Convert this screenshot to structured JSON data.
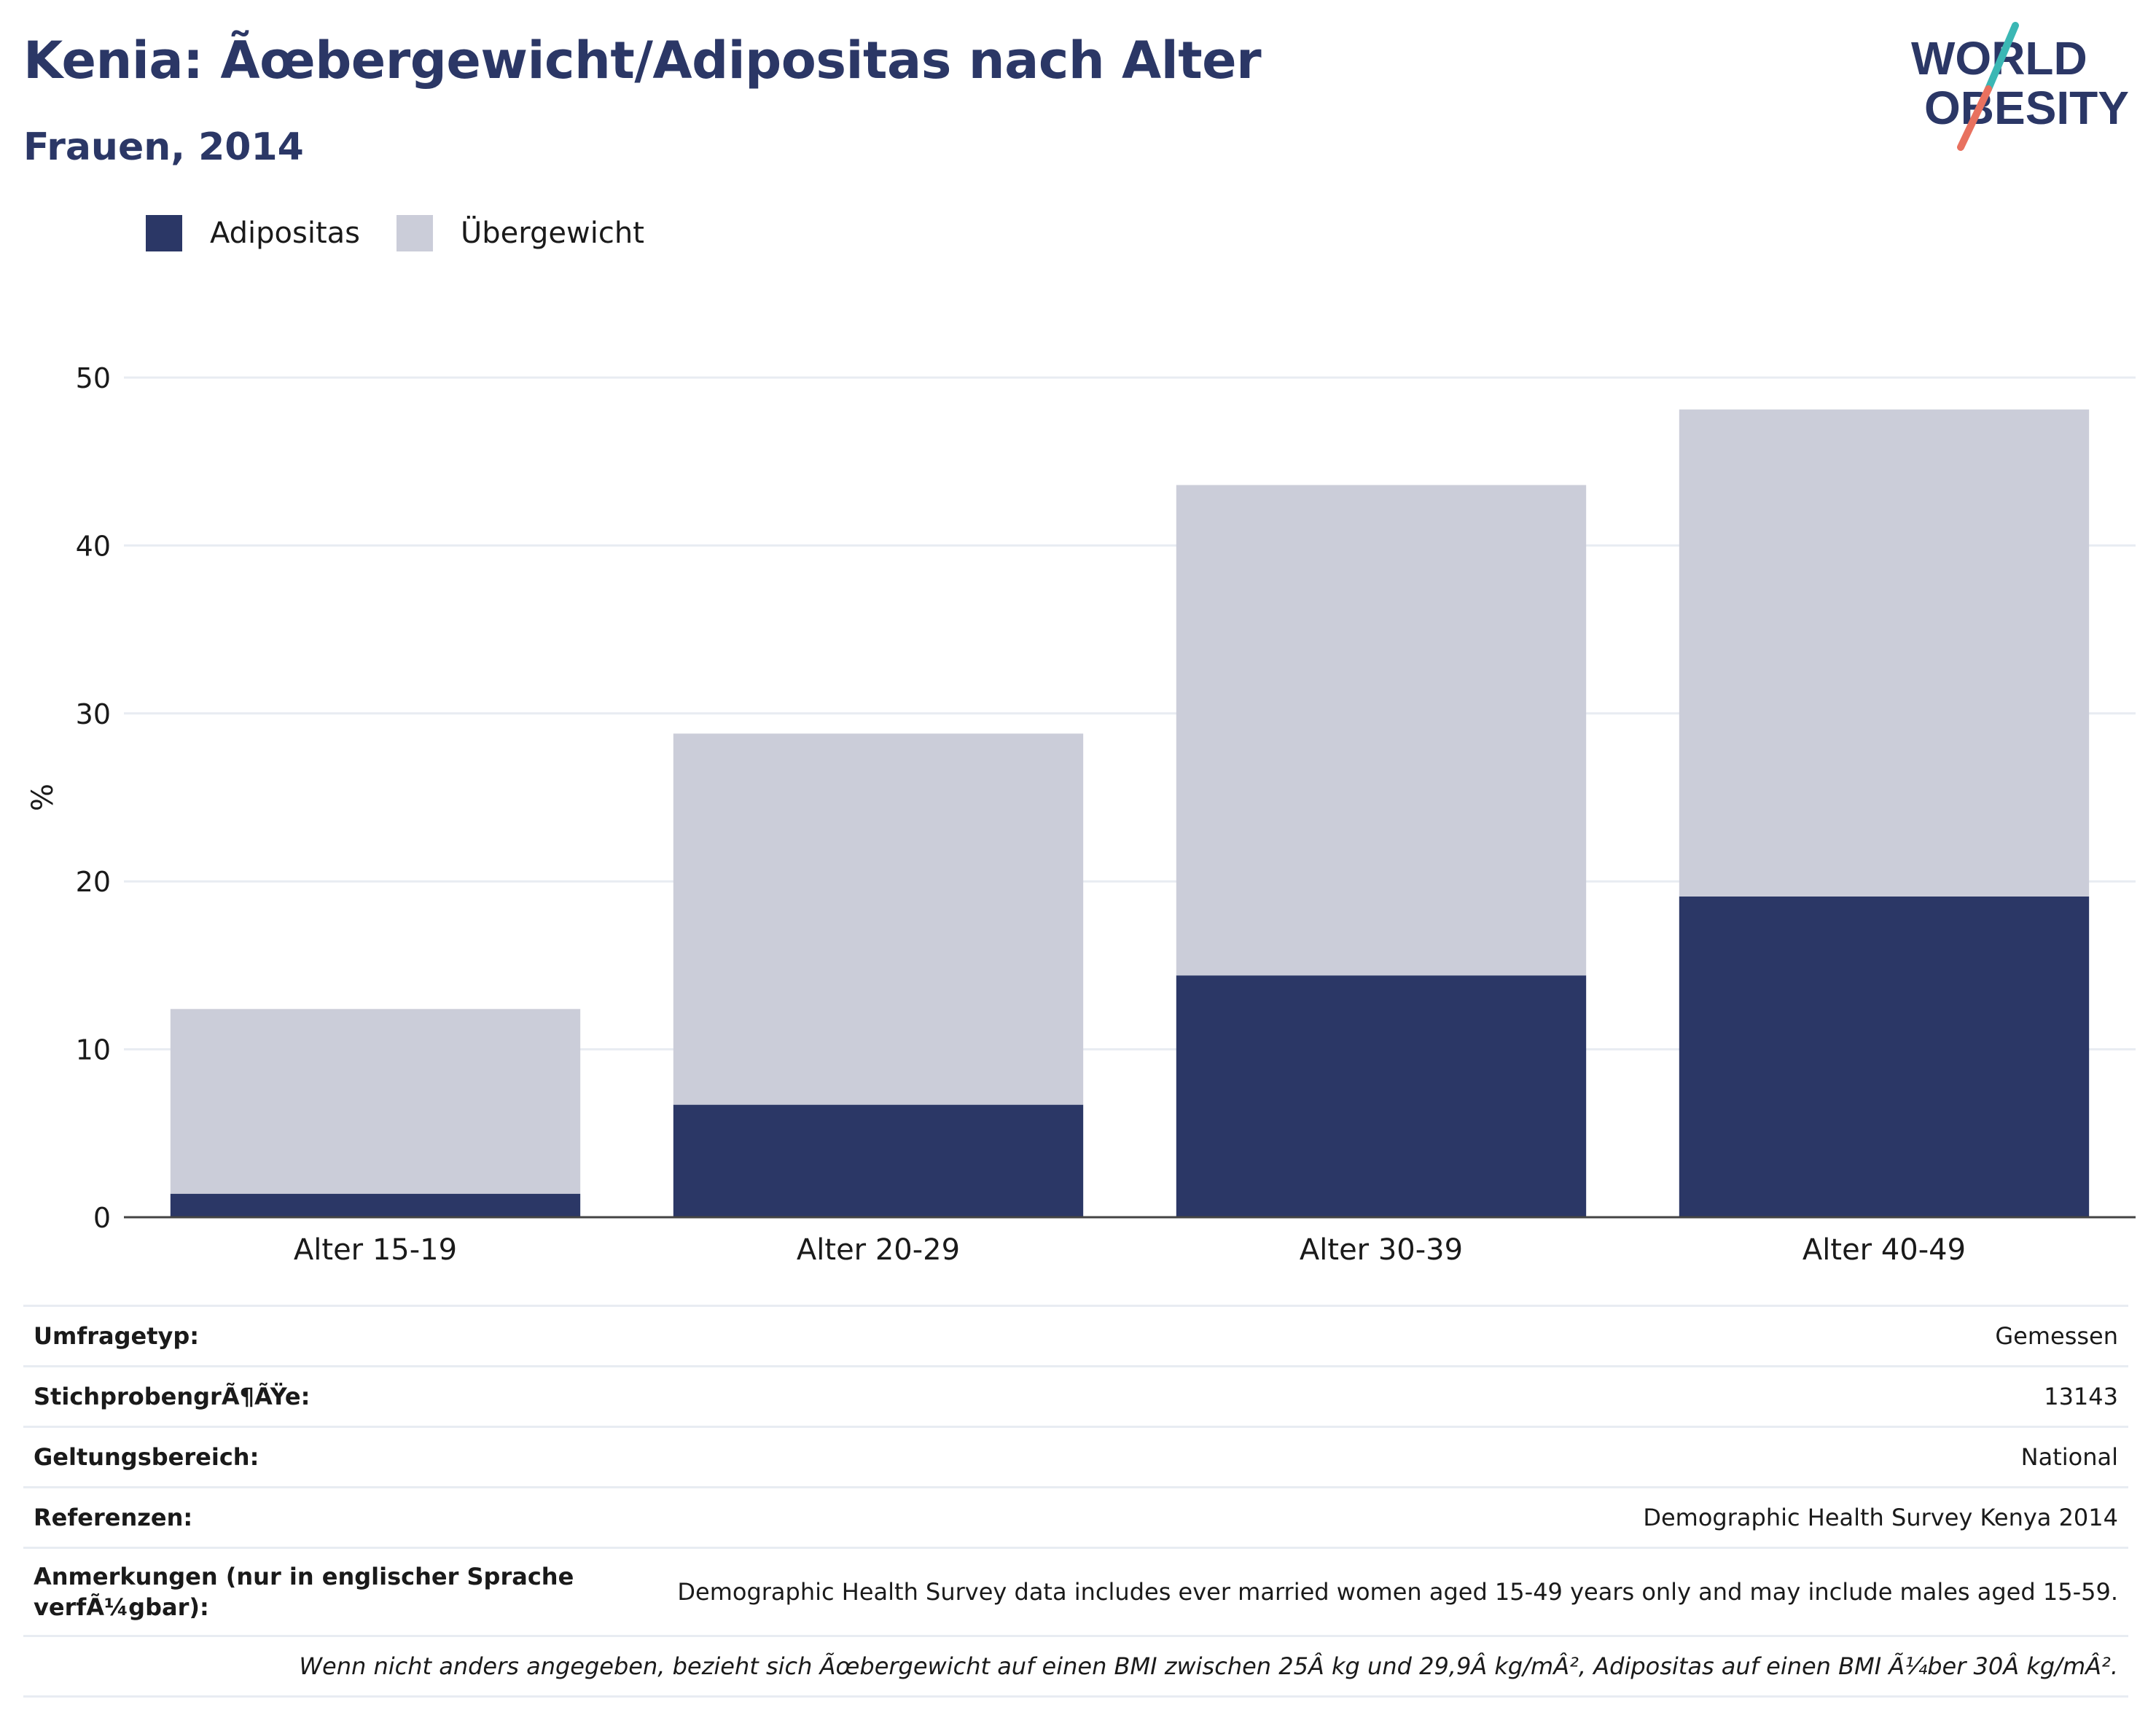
{
  "title": "Kenia: Ãœbergewicht/Adipositas nach Alter",
  "subtitle": "Frauen, 2014",
  "logo": {
    "line1": "WORLD",
    "line2": "OBESITY"
  },
  "legend": [
    {
      "label": "Adipositas",
      "color": "#2b3766"
    },
    {
      "label": "Übergewicht",
      "color": "#cbcdd9"
    }
  ],
  "chart_data": {
    "type": "bar",
    "stacked": true,
    "title": "Kenia: Ãœbergewicht/Adipositas nach Alter",
    "subtitle": "Frauen, 2014",
    "categories": [
      "Alter 15-19",
      "Alter 20-29",
      "Alter 30-39",
      "Alter 40-49"
    ],
    "series": [
      {
        "name": "Adipositas",
        "color": "#2b3766",
        "values": [
          1.4,
          6.7,
          14.4,
          19.1
        ]
      },
      {
        "name": "Übergewicht",
        "color": "#cbcdd9",
        "values": [
          11.0,
          22.1,
          29.2,
          29.0
        ]
      }
    ],
    "ylabel": "%",
    "ylim": [
      0,
      50
    ],
    "yticks": [
      0,
      10,
      20,
      30,
      40,
      50
    ],
    "grid": true,
    "legend_position": "top-left"
  },
  "info": [
    {
      "label": "Umfragetyp:",
      "value": "Gemessen"
    },
    {
      "label": "StichprobengrÃ¶ÃŸe:",
      "value": "13143"
    },
    {
      "label": "Geltungsbereich:",
      "value": "National"
    },
    {
      "label": "Referenzen:",
      "value": "Demographic Health Survey Kenya 2014"
    },
    {
      "label": "Anmerkungen (nur in englischer Sprache verfÃ¼gbar):",
      "value": "Demographic Health Survey data includes ever married women aged 15-49 years only and may include males aged 15-59."
    }
  ],
  "footnote": "Wenn nicht anders angegeben, bezieht sich Ãœbergewicht auf einen BMI zwischen 25Â kg und 29,9Â kg/mÂ², Adipositas auf einen BMI Ã¼ber 30Â kg/mÂ²."
}
